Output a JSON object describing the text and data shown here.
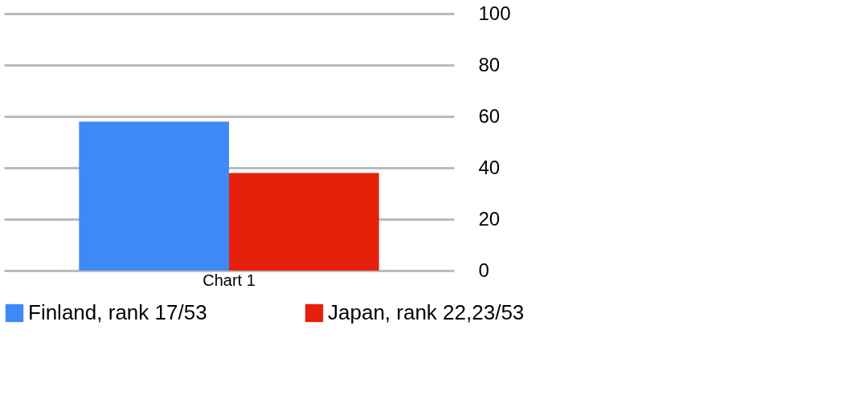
{
  "chart_data": {
    "type": "bar",
    "categories": [
      "Chart 1"
    ],
    "series": [
      {
        "name": "Finland, rank 17/53",
        "color": "#3d8af7",
        "values": [
          58
        ]
      },
      {
        "name": "Japan, rank 22,23/53",
        "color": "#e5200b",
        "values": [
          38
        ]
      }
    ],
    "ylim": [
      0,
      100
    ],
    "yticks": [
      0,
      20,
      40,
      60,
      80,
      100
    ],
    "grid": "y",
    "legend": "bottom"
  }
}
